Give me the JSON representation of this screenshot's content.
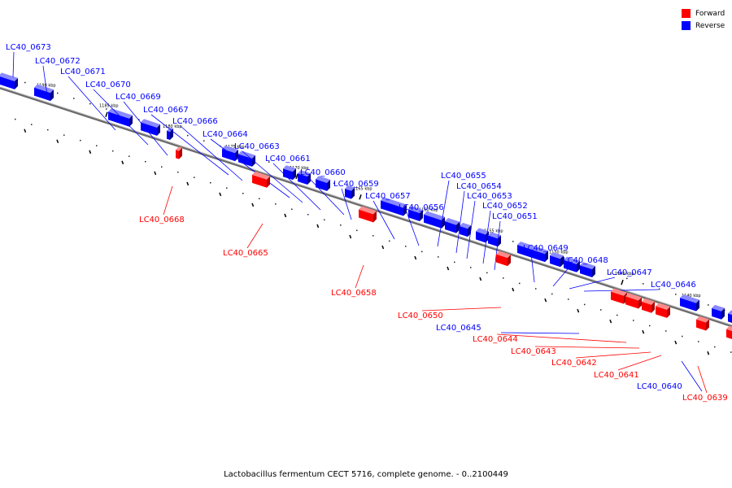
{
  "title": "Lactobacillus fermentum CECT 5716, complete genome. - 0..2100449",
  "legend": {
    "items": [
      {
        "label": "Forward",
        "color": "#ff0000"
      },
      {
        "label": "Reverse",
        "color": "#0000ff"
      }
    ]
  },
  "colors": {
    "forward": "#ff0000",
    "reverse": "#0000ff",
    "backbone": "#808080"
  },
  "scale_labels": [
    "1190 kbp",
    "1185 kbp",
    "1180 kbp",
    "1175 kbp",
    "1170 kbp",
    "1165 kbp",
    "1160 kbp",
    "1155 kbp",
    "1150 kbp",
    "1145 kbp",
    "1140 kbp"
  ],
  "genes_reverse": [
    "LC40_0673",
    "LC40_0672",
    "LC40_0671",
    "LC40_0670",
    "LC40_0669",
    "LC40_0667",
    "LC40_0666",
    "LC40_0664",
    "LC40_0663",
    "LC40_0661",
    "LC40_0660",
    "LC40_0659",
    "LC40_0657",
    "LC40_0656",
    "LC40_0655",
    "LC40_0654",
    "LC40_0653",
    "LC40_0652",
    "LC40_0651",
    "LC40_0649",
    "LC40_0648",
    "LC40_0647",
    "LC40_0646",
    "LC40_0645",
    "LC40_0640"
  ],
  "genes_forward": [
    "LC40_0668",
    "LC40_0665",
    "LC40_0658",
    "LC40_0650",
    "LC40_0644",
    "LC40_0643",
    "LC40_0642",
    "LC40_0641",
    "LC40_0639"
  ]
}
